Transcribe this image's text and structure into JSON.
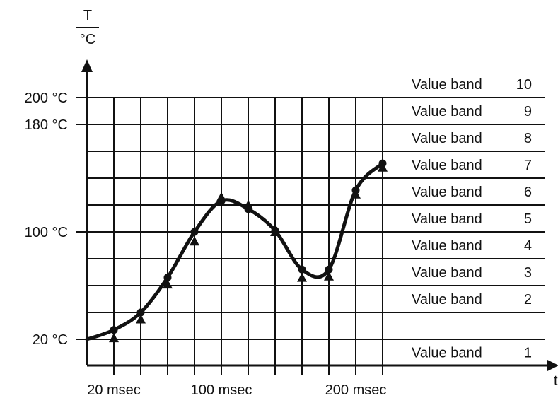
{
  "chart_data": {
    "type": "line",
    "y_axis_symbol": "T",
    "y_axis_unit": "°C",
    "x_axis_symbol": "t",
    "x_ticks": [
      {
        "value": 20,
        "label": "20 msec"
      },
      {
        "value": 100,
        "label": "100 msec"
      },
      {
        "value": 200,
        "label": "200 msec"
      }
    ],
    "y_ticks": [
      {
        "value": 20,
        "label": "20 °C"
      },
      {
        "value": 100,
        "label": "100 °C"
      },
      {
        "value": 180,
        "label": "180 °C"
      },
      {
        "value": 200,
        "label": "200 °C"
      }
    ],
    "bands": [
      {
        "name": "Value band",
        "number": "1"
      },
      {
        "name": "Value band",
        "number": "2"
      },
      {
        "name": "Value band",
        "number": "3"
      },
      {
        "name": "Value band",
        "number": "4"
      },
      {
        "name": "Value band",
        "number": "5"
      },
      {
        "name": "Value band",
        "number": "6"
      },
      {
        "name": "Value band",
        "number": "7"
      },
      {
        "name": "Value band",
        "number": "8"
      },
      {
        "name": "Value band",
        "number": "9"
      },
      {
        "name": "Value band",
        "number": "10"
      }
    ],
    "x_sample_interval_msec": 20,
    "curve": [
      {
        "x": 0,
        "y": 20
      },
      {
        "x": 20,
        "y": 27
      },
      {
        "x": 40,
        "y": 40
      },
      {
        "x": 60,
        "y": 66
      },
      {
        "x": 80,
        "y": 100
      },
      {
        "x": 100,
        "y": 123
      },
      {
        "x": 120,
        "y": 117
      },
      {
        "x": 140,
        "y": 101
      },
      {
        "x": 160,
        "y": 72
      },
      {
        "x": 180,
        "y": 72
      },
      {
        "x": 200,
        "y": 131
      },
      {
        "x": 220,
        "y": 151
      }
    ],
    "dots": [
      {
        "x": 20,
        "y": 27
      },
      {
        "x": 40,
        "y": 40
      },
      {
        "x": 60,
        "y": 66
      },
      {
        "x": 80,
        "y": 100
      },
      {
        "x": 100,
        "y": 123
      },
      {
        "x": 120,
        "y": 117
      },
      {
        "x": 140,
        "y": 101
      },
      {
        "x": 160,
        "y": 72
      },
      {
        "x": 180,
        "y": 72
      },
      {
        "x": 200,
        "y": 131
      },
      {
        "x": 220,
        "y": 151
      }
    ],
    "samples": [
      {
        "x": 20,
        "y": 21
      },
      {
        "x": 40,
        "y": 35
      },
      {
        "x": 60,
        "y": 61
      },
      {
        "x": 80,
        "y": 93
      },
      {
        "x": 100,
        "y": 126
      },
      {
        "x": 120,
        "y": 120
      },
      {
        "x": 140,
        "y": 100
      },
      {
        "x": 160,
        "y": 66
      },
      {
        "x": 180,
        "y": 67
      },
      {
        "x": 200,
        "y": 128
      },
      {
        "x": 220,
        "y": 148
      }
    ],
    "ylim": [
      0,
      220
    ],
    "xlim": [
      0,
      350
    ],
    "grid": true,
    "colors": {
      "line": "#111111",
      "grid": "#111111",
      "background": "#ffffff"
    }
  }
}
